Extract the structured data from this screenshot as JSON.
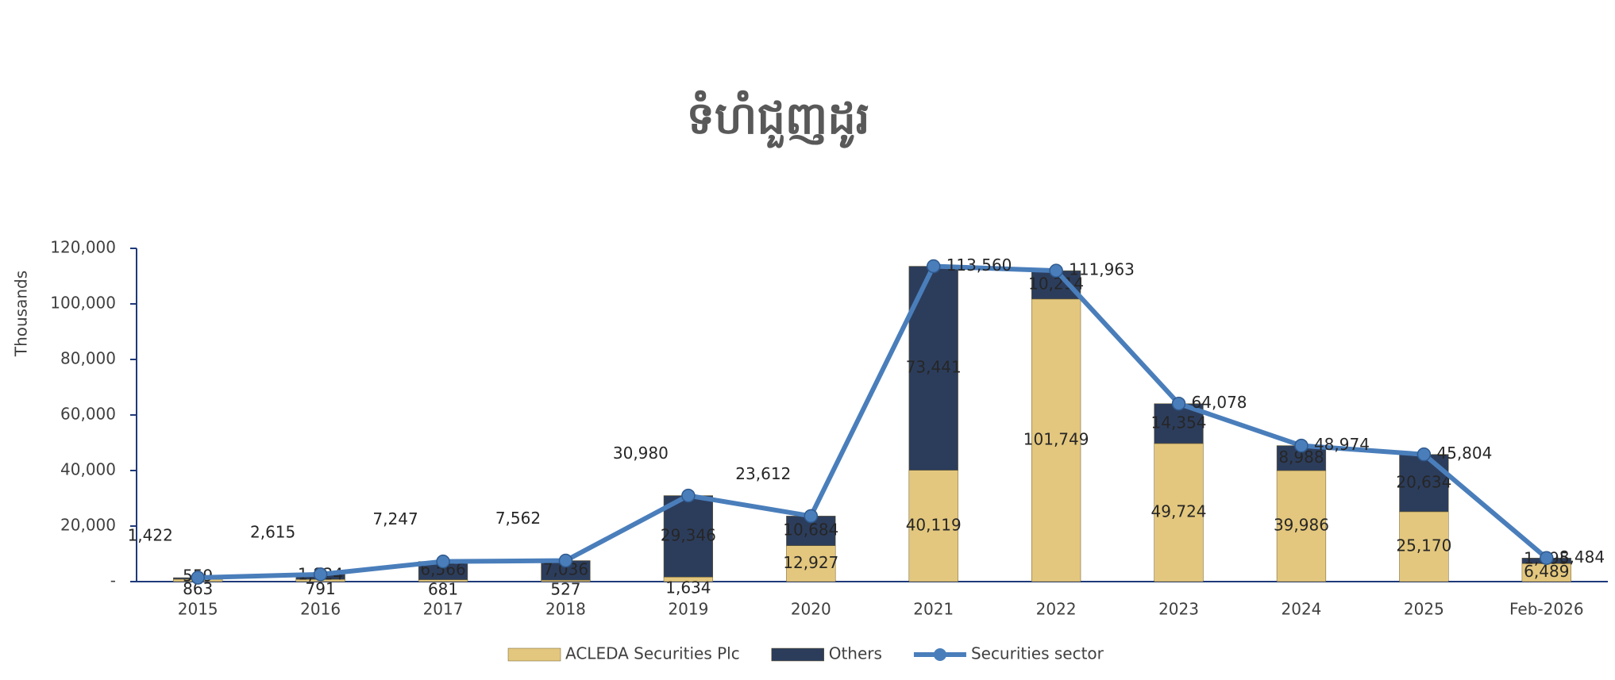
{
  "chart_data": {
    "type": "bar",
    "title": "ទំហំជួញដូរ",
    "y_label": "Thousands",
    "categories": [
      "2015",
      "2016",
      "2017",
      "2018",
      "2019",
      "2020",
      "2021",
      "2022",
      "2023",
      "2024",
      "2025",
      "Feb-2026"
    ],
    "series": [
      {
        "name": "ACLEDA Securities Plc",
        "type": "bar",
        "color": "#e3c77e",
        "values": [
          863,
          791,
          681,
          527,
          1634,
          12927,
          40119,
          101749,
          49724,
          39986,
          25170,
          6489
        ],
        "value_labels": [
          "863",
          "791",
          "681",
          "527",
          "1,634",
          "12,927",
          "40,119",
          "101,749",
          "49,724",
          "39,986",
          "25,170",
          "6,489"
        ]
      },
      {
        "name": "Others",
        "type": "bar",
        "color": "#2c3d5c",
        "values": [
          559,
          1824,
          6566,
          7036,
          29346,
          10684,
          73441,
          10214,
          14354,
          8988,
          20634,
          1995
        ],
        "value_labels": [
          "559",
          "1,824",
          "6,566",
          "7,036",
          "29,346",
          "10,684",
          "73,441",
          "10,214",
          "14,354",
          "8,988",
          "20,634",
          "1,995"
        ]
      },
      {
        "name": "Securities sector",
        "type": "line",
        "color": "#4a7ebb",
        "values": [
          1422,
          2615,
          7247,
          7562,
          30980,
          23612,
          113560,
          111963,
          64078,
          48974,
          45804,
          8484
        ],
        "value_labels": [
          "1,422",
          "2,615",
          "7,247",
          "7,562",
          "30,980",
          "23,612",
          "113,560",
          "111,963",
          "64,078",
          "48,974",
          "45,804",
          "8,484"
        ]
      }
    ],
    "ylim": [
      0,
      120000
    ],
    "yticks": [
      {
        "value": 0,
        "label": "-"
      },
      {
        "value": 20000,
        "label": "20,000"
      },
      {
        "value": 40000,
        "label": "40,000"
      },
      {
        "value": 60000,
        "label": "60,000"
      },
      {
        "value": 80000,
        "label": "80,000"
      },
      {
        "value": 100000,
        "label": "100,000"
      },
      {
        "value": 120000,
        "label": "120,000"
      }
    ],
    "legend": "bottom"
  }
}
